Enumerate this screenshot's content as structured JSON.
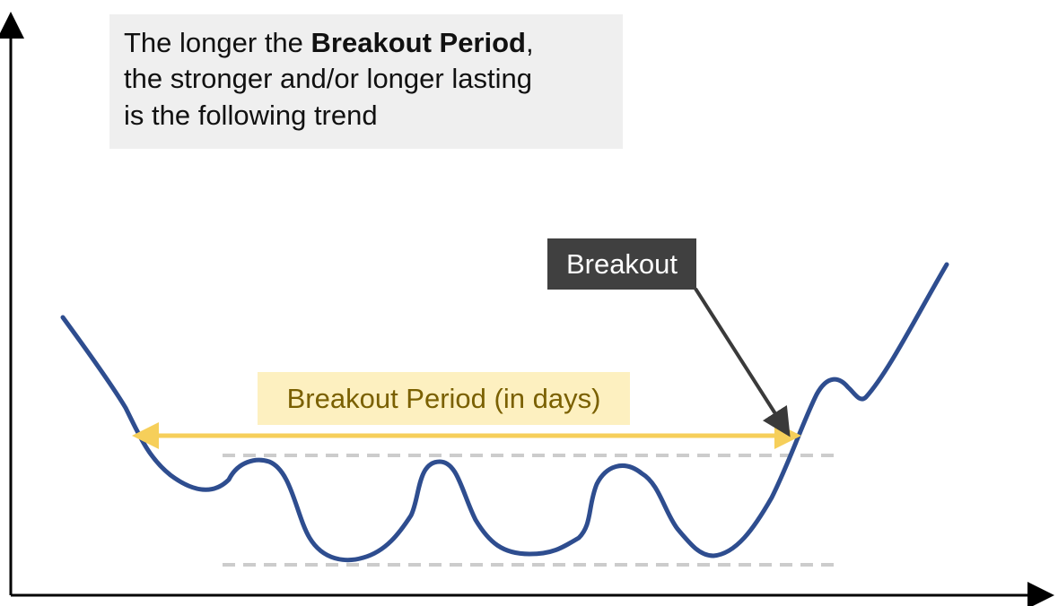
{
  "note": {
    "line1_prefix": "The longer the ",
    "line1_bold": "Breakout Period",
    "line1_suffix": ",",
    "line2": "the stronger and/or longer lasting",
    "line3": "is the following trend"
  },
  "labels": {
    "breakout": "Breakout",
    "period": "Breakout Period (in days)"
  },
  "colors": {
    "price_line": "#2e4d8f",
    "period_arrow": "#f6cf5a",
    "pointer_arrow": "#3a3a3a",
    "bound_lines": "#cccccc",
    "axes": "#000000"
  }
}
